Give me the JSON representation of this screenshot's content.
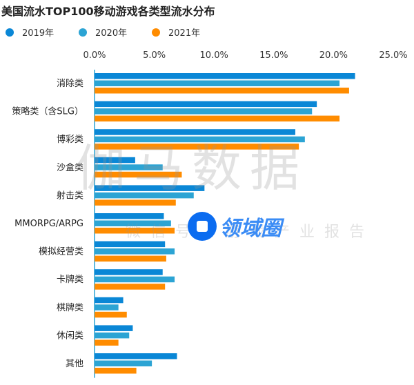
{
  "chart_data": {
    "type": "bar",
    "orientation": "horizontal",
    "title": "美国流水TOP100移动游戏各类型流水分布",
    "xlabel": "",
    "ylabel": "",
    "xlim": [
      0,
      25
    ],
    "x_ticks": [
      "0.0%",
      "5.0%",
      "10.0%",
      "15.0%",
      "20.0%",
      "25.0%"
    ],
    "grid": false,
    "legend_position": "top-left",
    "categories": [
      "消除类",
      "策略类（含SLG）",
      "博彩类",
      "沙盒类",
      "射击类",
      "MMORPG/ARPG",
      "模拟经营类",
      "卡牌类",
      "棋牌类",
      "休闲类",
      "其他"
    ],
    "series": [
      {
        "name": "2019年",
        "color": "#0a87d6",
        "values": [
          21.8,
          18.6,
          16.8,
          3.4,
          9.2,
          5.8,
          5.9,
          5.7,
          2.4,
          3.2,
          6.9
        ]
      },
      {
        "name": "2020年",
        "color": "#2ca4d4",
        "values": [
          20.5,
          18.2,
          17.6,
          5.7,
          8.3,
          6.4,
          6.7,
          6.7,
          2.0,
          2.9,
          4.8
        ]
      },
      {
        "name": "2021年",
        "color": "#ff8c00",
        "values": [
          21.3,
          20.5,
          17.1,
          7.3,
          6.8,
          6.7,
          6.0,
          5.9,
          2.7,
          2.0,
          3.5
        ]
      }
    ]
  },
  "watermark": {
    "main": "伽马数据",
    "sub": "微信号：游戏产业报告",
    "logo": "领域圈"
  }
}
